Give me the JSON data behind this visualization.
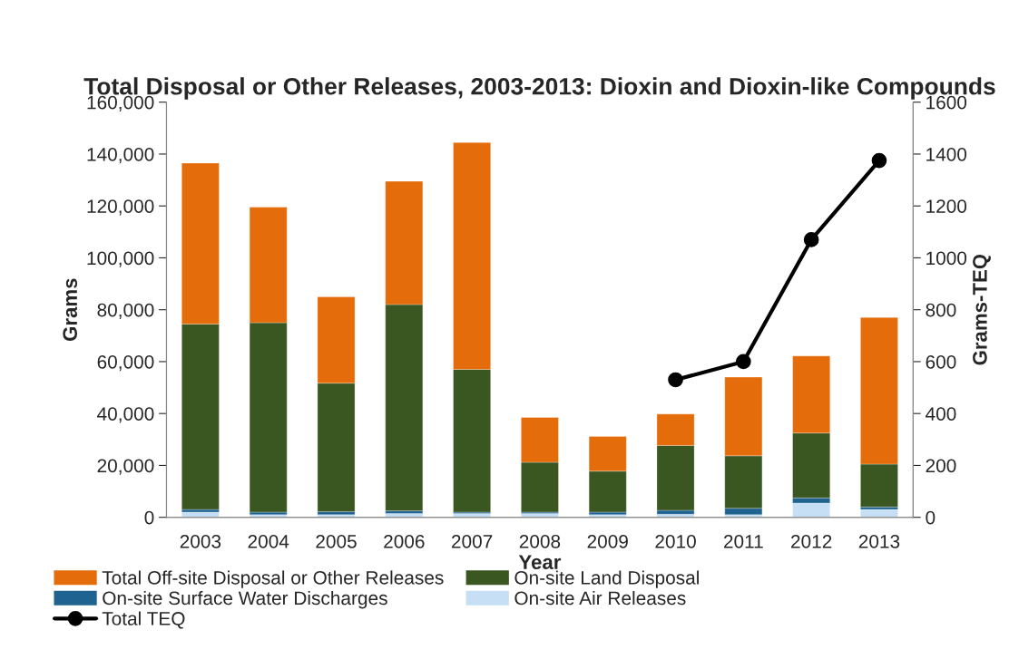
{
  "chart_data": {
    "type": "bar",
    "title": "Total Disposal or Other Releases, 2003-2013: Dioxin and Dioxin-like Compounds",
    "xlabel": "Year",
    "ylabel": "Grams",
    "y2label": "Grams-TEQ",
    "stacked": true,
    "legend": "bottom",
    "grid": false,
    "categories": [
      "2003",
      "2004",
      "2005",
      "2006",
      "2007",
      "2008",
      "2009",
      "2010",
      "2011",
      "2012",
      "2013"
    ],
    "ylim": [
      0,
      160000
    ],
    "yticks": [
      {
        "value": 0,
        "label": "0"
      },
      {
        "value": 20000,
        "label": "20,000"
      },
      {
        "value": 40000,
        "label": "40,000"
      },
      {
        "value": 60000,
        "label": "60,000"
      },
      {
        "value": 80000,
        "label": "80,000"
      },
      {
        "value": 100000,
        "label": "100,000"
      },
      {
        "value": 120000,
        "label": "120,000"
      },
      {
        "value": 140000,
        "label": "140,000"
      },
      {
        "value": 160000,
        "label": "160,000"
      }
    ],
    "y2lim": [
      0,
      1600
    ],
    "y2ticks": [
      0,
      200,
      400,
      600,
      800,
      1000,
      1200,
      1400,
      1600
    ],
    "series": [
      {
        "name": "On-site Air Releases",
        "color": "#c6dff5",
        "values": [
          2000,
          1000,
          1000,
          1500,
          1500,
          1500,
          1000,
          1200,
          1000,
          5500,
          3000
        ]
      },
      {
        "name": "On-site Surface Water Discharges",
        "color": "#1f6391",
        "values": [
          1000,
          1000,
          1200,
          1000,
          500,
          500,
          1000,
          1500,
          2500,
          2000,
          1000
        ]
      },
      {
        "name": "On-site Land Disposal",
        "color": "#3a5621",
        "values": [
          71500,
          73000,
          49500,
          79500,
          55000,
          19200,
          15800,
          25000,
          20200,
          25000,
          16500
        ]
      },
      {
        "name": "Total Off-site Disposal or Other Releases",
        "color": "#e46c0a",
        "values": [
          62000,
          44500,
          33300,
          47500,
          87400,
          17300,
          13400,
          12100,
          30300,
          29700,
          56500
        ]
      },
      {
        "name": "Total TEQ",
        "type": "line",
        "axis": "y2",
        "color": "#000000",
        "marker": "circle",
        "line_style": "solid",
        "values": [
          null,
          null,
          null,
          null,
          null,
          null,
          null,
          530,
          600,
          1070,
          1375
        ]
      }
    ]
  }
}
